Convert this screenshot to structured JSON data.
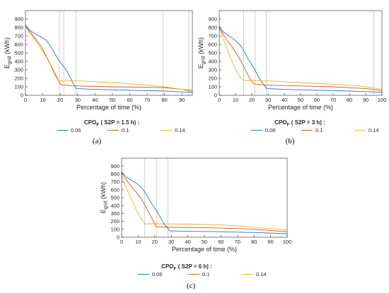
{
  "panels": [
    {
      "tag": "(a)",
      "xlabel": "Percentage of time (%)",
      "ylabel_main": "E",
      "ylabel_sub": "grid",
      "ylabel_unit": " (kWh)",
      "xlim": [
        0,
        96
      ],
      "ylim": [
        0,
        1000
      ],
      "xticks": [
        0,
        10,
        20,
        30,
        40,
        50,
        60,
        70,
        80,
        90
      ],
      "yticks": [
        0,
        100,
        200,
        300,
        400,
        500,
        600,
        700,
        800,
        900
      ],
      "legend_title_main": "CPO",
      "legend_title_sub": "F",
      "legend_title_rest": " ( S2P = 1.5 h) :",
      "vlines": [
        19.5,
        22,
        29,
        79,
        94
      ]
    },
    {
      "tag": "(b)",
      "xlabel": "Percentage of time (%)",
      "ylabel_main": "E",
      "ylabel_sub": "grid",
      "ylabel_unit": " (kWh)",
      "xlim": [
        0,
        100
      ],
      "ylim": [
        0,
        1000
      ],
      "xticks": [
        0,
        10,
        20,
        30,
        40,
        50,
        60,
        70,
        80,
        90,
        100
      ],
      "yticks": [
        0,
        100,
        200,
        300,
        400,
        500,
        600,
        700,
        800,
        900
      ],
      "legend_title_main": "CPO",
      "legend_title_sub": "F",
      "legend_title_rest": " ( S2P = 3 h) :",
      "vlines": [
        15,
        22,
        29,
        95
      ]
    },
    {
      "tag": "(c)",
      "xlabel": "Percentage of time (%)",
      "ylabel_main": "E",
      "ylabel_sub": "grid",
      "ylabel_unit": " (kWh)",
      "xlim": [
        0,
        100
      ],
      "ylim": [
        0,
        1000
      ],
      "xticks": [
        0,
        10,
        20,
        30,
        40,
        50,
        60,
        70,
        80,
        90,
        100
      ],
      "yticks": [
        0,
        100,
        200,
        300,
        400,
        500,
        600,
        700,
        800,
        900
      ],
      "legend_title_main": "CPO",
      "legend_title_sub": "F",
      "legend_title_rest": " ( S2P = 6 h) :",
      "vlines": [
        14,
        21,
        28
      ]
    }
  ],
  "legend_labels": [
    "0.06",
    "0.1",
    "0.14"
  ],
  "colors": {
    "blue": "#1f77d4",
    "red": "#d9541f",
    "yellow": "#edb120"
  },
  "chart_data": [
    {
      "type": "line",
      "xlabel": "Percentage of time (%)",
      "ylabel": "Egrid (kWh)",
      "xlim": [
        0,
        96
      ],
      "ylim": [
        0,
        1000
      ],
      "series": [
        {
          "name": "0.06",
          "x": [
            0,
            1,
            3,
            6,
            9,
            12,
            15,
            18,
            20,
            22,
            24,
            26,
            28,
            29,
            40,
            60,
            80,
            90,
            96
          ],
          "values": [
            830,
            800,
            760,
            720,
            690,
            650,
            560,
            450,
            390,
            340,
            280,
            200,
            120,
            80,
            70,
            60,
            50,
            40,
            35
          ]
        },
        {
          "name": "0.1",
          "x": [
            0,
            1,
            3,
            6,
            9,
            11,
            14,
            17,
            19,
            20,
            22,
            30,
            50,
            70,
            80,
            96
          ],
          "values": [
            820,
            790,
            740,
            660,
            580,
            500,
            380,
            260,
            170,
            130,
            120,
            110,
            100,
            95,
            90,
            60
          ]
        },
        {
          "name": "0.14",
          "x": [
            0,
            1,
            3,
            6,
            9,
            12,
            15,
            17,
            19,
            20,
            30,
            50,
            70,
            80,
            90,
            96
          ],
          "values": [
            820,
            780,
            720,
            640,
            550,
            450,
            330,
            230,
            170,
            175,
            170,
            150,
            120,
            100,
            70,
            40
          ]
        }
      ]
    },
    {
      "type": "line",
      "xlabel": "Percentage of time (%)",
      "ylabel": "Egrid (kWh)",
      "xlim": [
        0,
        100
      ],
      "ylim": [
        0,
        1000
      ],
      "series": [
        {
          "name": "0.06",
          "x": [
            0,
            1,
            3,
            6,
            9,
            12,
            14,
            16,
            18,
            20,
            22,
            24,
            26,
            28,
            29,
            40,
            60,
            80,
            95,
            100
          ],
          "values": [
            820,
            780,
            740,
            700,
            660,
            610,
            560,
            490,
            420,
            360,
            300,
            220,
            160,
            110,
            80,
            70,
            60,
            50,
            40,
            35
          ]
        },
        {
          "name": "0.1",
          "x": [
            0,
            1,
            3,
            6,
            9,
            12,
            14,
            16,
            18,
            20,
            22,
            30,
            50,
            70,
            90,
            100
          ],
          "values": [
            820,
            770,
            700,
            620,
            540,
            450,
            380,
            300,
            230,
            160,
            130,
            120,
            110,
            100,
            80,
            55
          ]
        },
        {
          "name": "0.14",
          "x": [
            0,
            1,
            3,
            5,
            7,
            9,
            11,
            13,
            15,
            16,
            30,
            50,
            70,
            80,
            90,
            100
          ],
          "values": [
            800,
            740,
            640,
            540,
            440,
            350,
            270,
            210,
            180,
            175,
            170,
            150,
            130,
            120,
            100,
            70
          ]
        }
      ]
    },
    {
      "type": "line",
      "xlabel": "Percentage of time (%)",
      "ylabel": "Egrid (kWh)",
      "xlim": [
        0,
        100
      ],
      "ylim": [
        0,
        1000
      ],
      "series": [
        {
          "name": "0.06",
          "x": [
            0,
            1,
            3,
            6,
            9,
            12,
            14,
            16,
            18,
            20,
            22,
            24,
            26,
            28,
            29,
            40,
            60,
            80,
            100
          ],
          "values": [
            830,
            800,
            760,
            720,
            680,
            630,
            570,
            500,
            430,
            370,
            300,
            230,
            160,
            110,
            80,
            75,
            70,
            60,
            45
          ]
        },
        {
          "name": "0.1",
          "x": [
            0,
            1,
            3,
            6,
            9,
            12,
            14,
            16,
            18,
            20,
            21,
            30,
            50,
            70,
            80,
            100
          ],
          "values": [
            820,
            780,
            720,
            640,
            560,
            480,
            410,
            330,
            250,
            170,
            130,
            125,
            120,
            110,
            100,
            70
          ]
        },
        {
          "name": "0.14",
          "x": [
            0,
            1,
            3,
            5,
            7,
            9,
            11,
            13,
            14,
            20,
            40,
            60,
            78,
            80,
            90,
            100
          ],
          "values": [
            780,
            720,
            620,
            520,
            430,
            340,
            260,
            200,
            170,
            170,
            165,
            155,
            135,
            120,
            110,
            90
          ]
        }
      ]
    }
  ]
}
